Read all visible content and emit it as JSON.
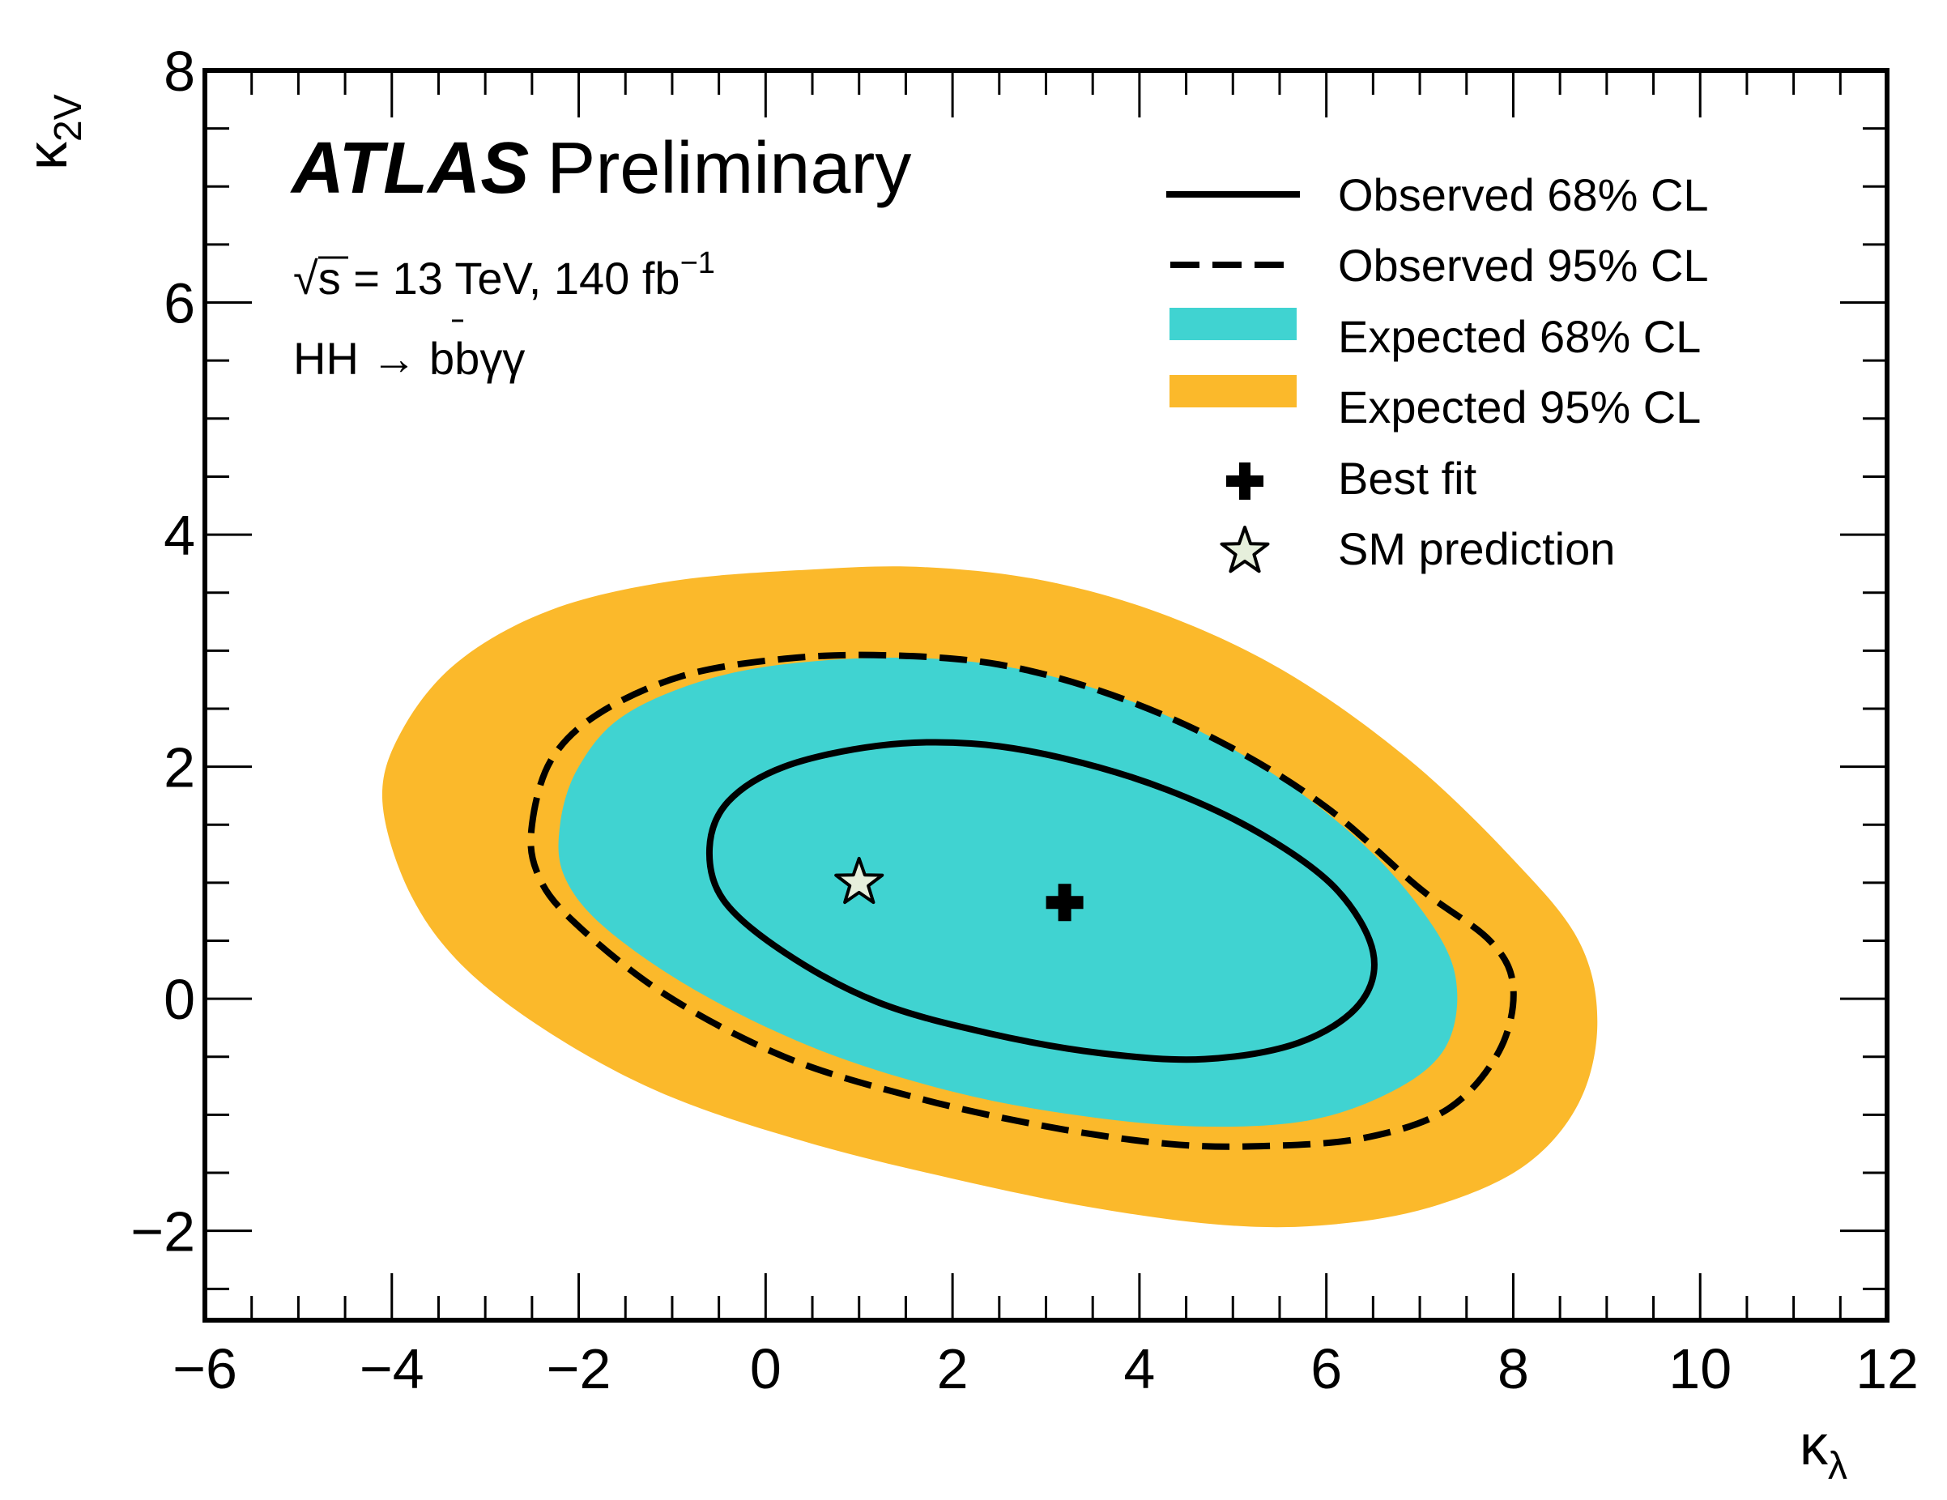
{
  "chart_data": {
    "type": "contour",
    "title": "",
    "experiment": "ATLAS",
    "status": "Preliminary",
    "energy_label": "13 TeV, 140 fb",
    "energy_prefix": "√s = ",
    "lumi_exponent": "−1",
    "process_prefix": "HH → b",
    "process_bbar": "b",
    "process_suffix": "γγ",
    "xlabel": "κ",
    "xlabel_sub": "λ",
    "ylabel": "κ",
    "ylabel_sub": "2V",
    "xlim": [
      -6,
      12
    ],
    "ylim": [
      -2.77,
      8
    ],
    "x_major_ticks": [
      -6,
      -4,
      -2,
      0,
      2,
      4,
      6,
      8,
      10,
      12
    ],
    "x_tick_labels": [
      "−6",
      "−4",
      "−2",
      "0",
      "2",
      "4",
      "6",
      "8",
      "10",
      "12"
    ],
    "y_major_ticks": [
      -2,
      0,
      2,
      4,
      6,
      8
    ],
    "y_tick_labels": [
      "−2",
      "0",
      "2",
      "4",
      "6",
      "8"
    ],
    "x_minor_step": 0.5,
    "y_minor_step": 0.5,
    "grid": false,
    "legend_position": "top-right",
    "colors": {
      "expected_68": "#40d3d1",
      "expected_95": "#fbb92b",
      "observed_line": "#000000",
      "sm_star_fill": "#e6efdc",
      "best_fit": "#000000"
    },
    "legend": [
      {
        "label": "Observed 68% CL",
        "style": "solid-line"
      },
      {
        "label": "Observed 95% CL",
        "style": "dashed-line"
      },
      {
        "label": "Expected 68% CL",
        "style": "cyan-box"
      },
      {
        "label": "Expected 95% CL",
        "style": "orange-box"
      },
      {
        "label": "Best fit",
        "style": "cross-marker"
      },
      {
        "label": "SM prediction",
        "style": "star-marker"
      }
    ],
    "series": [
      {
        "name": "Expected 95% CL",
        "kind": "filled-contour",
        "points": [
          [
            -4.1,
            1.7
          ],
          [
            -3.9,
            2.3
          ],
          [
            -3.3,
            2.9
          ],
          [
            -2.3,
            3.35
          ],
          [
            -1,
            3.6
          ],
          [
            0.5,
            3.7
          ],
          [
            1.7,
            3.72
          ],
          [
            3,
            3.6
          ],
          [
            4.3,
            3.3
          ],
          [
            5.6,
            2.8
          ],
          [
            6.9,
            2.05
          ],
          [
            8,
            1.2
          ],
          [
            8.7,
            0.5
          ],
          [
            8.9,
            -0.2
          ],
          [
            8.7,
            -0.9
          ],
          [
            8.1,
            -1.45
          ],
          [
            7.1,
            -1.8
          ],
          [
            6,
            -1.95
          ],
          [
            4.9,
            -1.95
          ],
          [
            3.5,
            -1.8
          ],
          [
            2,
            -1.55
          ],
          [
            0.5,
            -1.25
          ],
          [
            -1,
            -0.85
          ],
          [
            -2.2,
            -0.35
          ],
          [
            -3.2,
            0.25
          ],
          [
            -3.8,
            0.9
          ]
        ]
      },
      {
        "name": "Expected 68% CL",
        "kind": "filled-contour",
        "points": [
          [
            -2.2,
            1.5
          ],
          [
            -2,
            2
          ],
          [
            -1.5,
            2.45
          ],
          [
            -0.5,
            2.78
          ],
          [
            0.7,
            2.92
          ],
          [
            2,
            2.92
          ],
          [
            3.2,
            2.75
          ],
          [
            4.4,
            2.4
          ],
          [
            5.5,
            1.9
          ],
          [
            6.5,
            1.25
          ],
          [
            7.2,
            0.55
          ],
          [
            7.4,
            0.05
          ],
          [
            7.25,
            -0.45
          ],
          [
            6.7,
            -0.8
          ],
          [
            5.8,
            -1.05
          ],
          [
            4.6,
            -1.1
          ],
          [
            3.3,
            -1.0
          ],
          [
            2,
            -0.8
          ],
          [
            0.6,
            -0.45
          ],
          [
            -0.7,
            0.05
          ],
          [
            -1.7,
            0.6
          ],
          [
            -2.15,
            1.05
          ]
        ]
      },
      {
        "name": "Observed 95% CL",
        "kind": "dashed-contour",
        "points": [
          [
            -2.5,
            1.5
          ],
          [
            -2.3,
            2.05
          ],
          [
            -1.8,
            2.45
          ],
          [
            -0.9,
            2.78
          ],
          [
            0.2,
            2.93
          ],
          [
            1.3,
            2.96
          ],
          [
            2.5,
            2.88
          ],
          [
            3.7,
            2.62
          ],
          [
            4.9,
            2.2
          ],
          [
            6,
            1.65
          ],
          [
            7,
            0.95
          ],
          [
            7.75,
            0.5
          ],
          [
            8.0,
            0.1
          ],
          [
            7.85,
            -0.45
          ],
          [
            7.3,
            -0.95
          ],
          [
            6.4,
            -1.2
          ],
          [
            5.3,
            -1.27
          ],
          [
            4.3,
            -1.25
          ],
          [
            3,
            -1.1
          ],
          [
            1.6,
            -0.85
          ],
          [
            0.2,
            -0.5
          ],
          [
            -1.1,
            0.05
          ],
          [
            -2.1,
            0.7
          ],
          [
            -2.45,
            1.1
          ]
        ]
      },
      {
        "name": "Observed 68% CL",
        "kind": "solid-contour",
        "points": [
          [
            -0.6,
            1.3
          ],
          [
            -0.4,
            1.7
          ],
          [
            0.2,
            2.0
          ],
          [
            1.2,
            2.18
          ],
          [
            2.2,
            2.2
          ],
          [
            3.2,
            2.07
          ],
          [
            4.3,
            1.8
          ],
          [
            5.3,
            1.42
          ],
          [
            6.1,
            0.95
          ],
          [
            6.5,
            0.4
          ],
          [
            6.35,
            -0.05
          ],
          [
            5.7,
            -0.38
          ],
          [
            4.7,
            -0.52
          ],
          [
            3.6,
            -0.47
          ],
          [
            2.4,
            -0.3
          ],
          [
            1.2,
            -0.03
          ],
          [
            0.2,
            0.4
          ],
          [
            -0.45,
            0.85
          ]
        ]
      },
      {
        "name": "Best fit",
        "kind": "marker",
        "x": 3.2,
        "y": 0.83
      },
      {
        "name": "SM prediction",
        "kind": "marker",
        "x": 1.0,
        "y": 1.0
      }
    ]
  }
}
